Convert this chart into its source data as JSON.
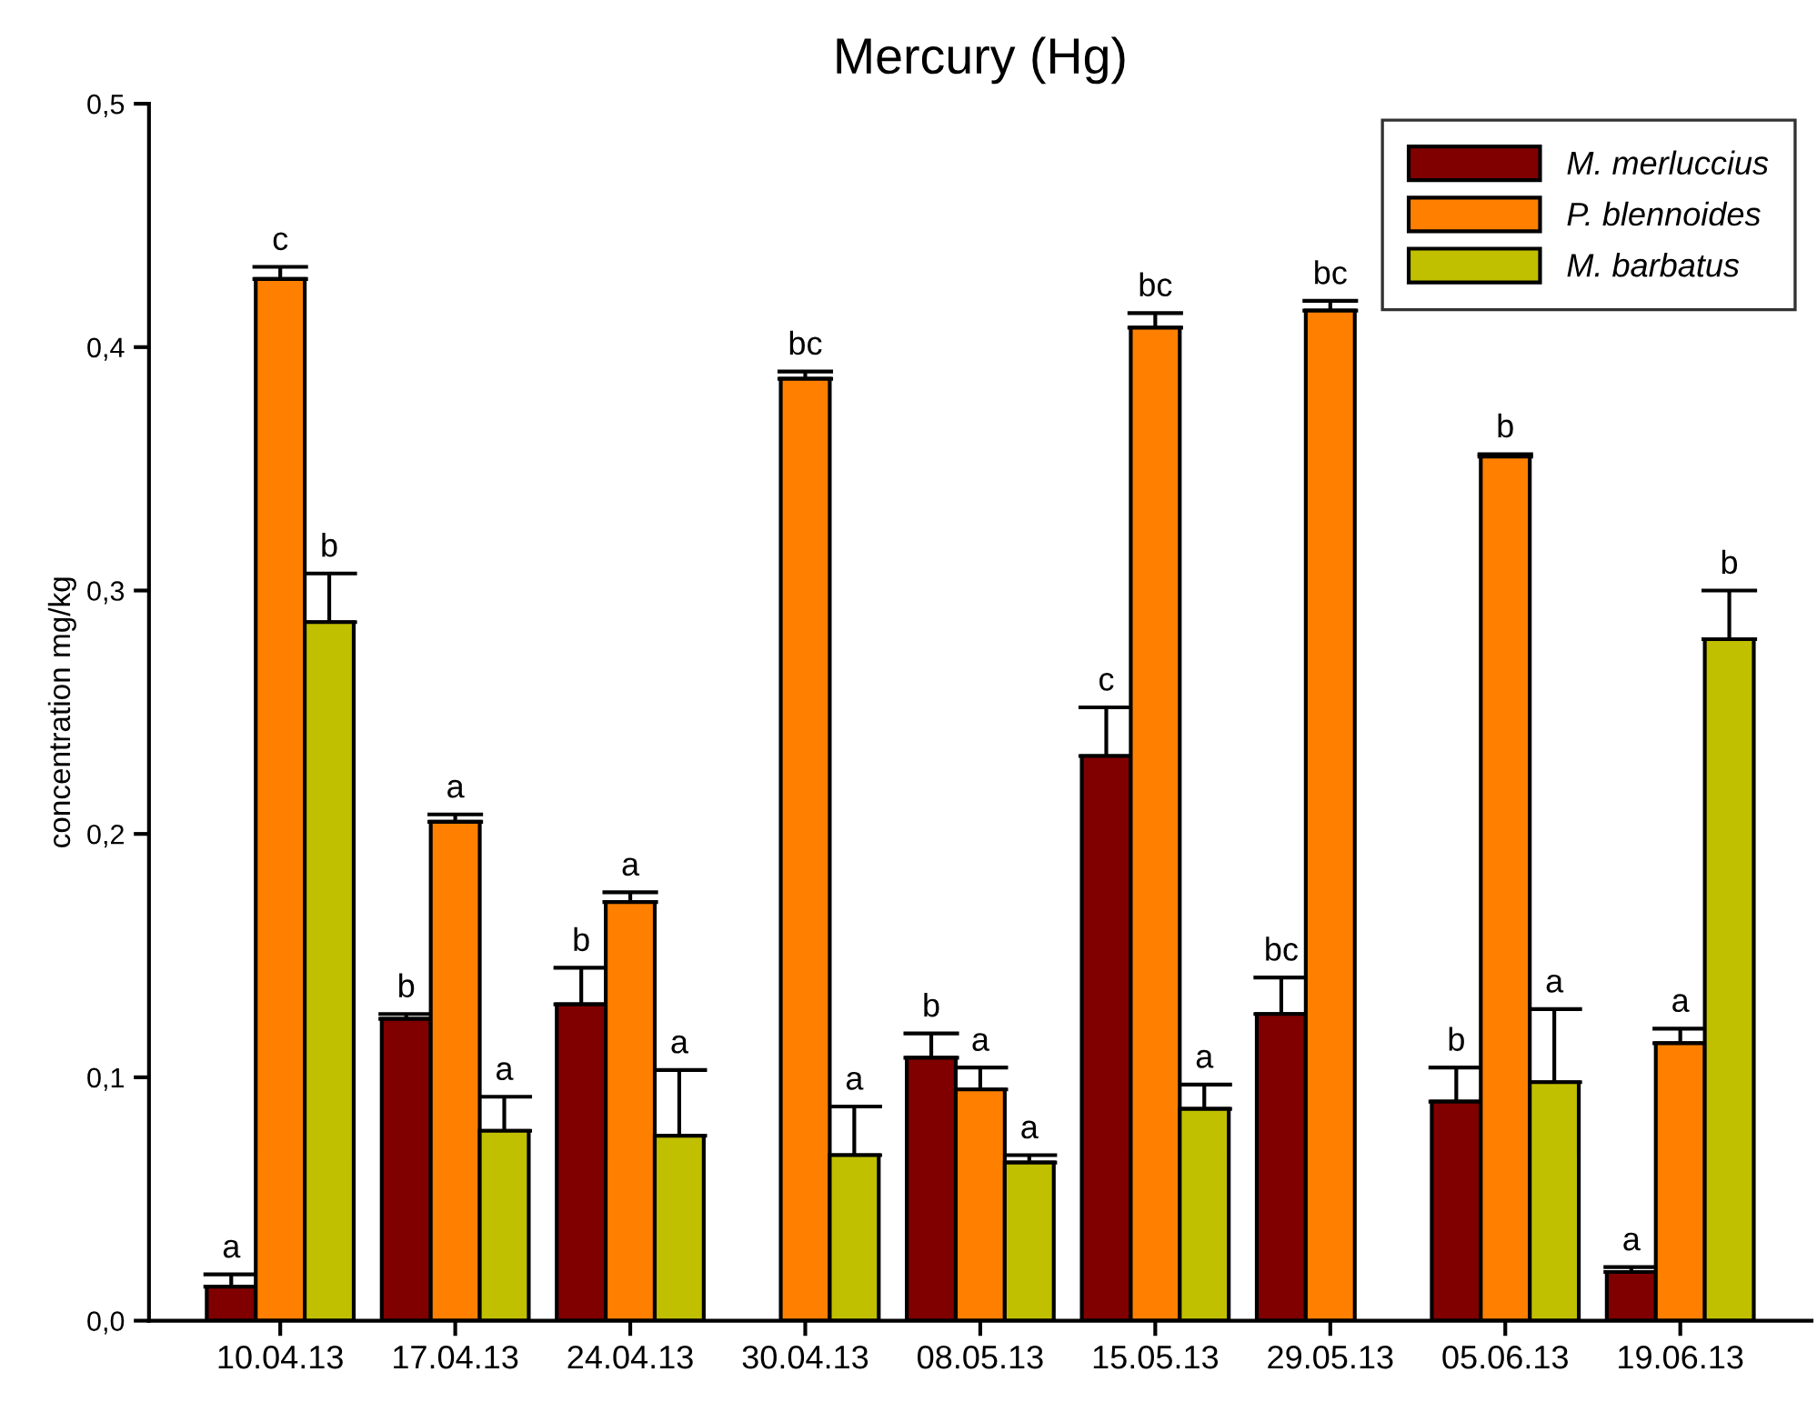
{
  "chart_data": {
    "type": "bar",
    "title": "Mercury (Hg)",
    "ylabel": "concentration mg/kg",
    "categories": [
      "10.04.13",
      "17.04.13",
      "24.04.13",
      "30.04.13",
      "08.05.13",
      "15.05.13",
      "29.05.13",
      "05.06.13",
      "19.06.13"
    ],
    "series": [
      {
        "name": "M. merluccius",
        "color": "#800000",
        "values": [
          0.014,
          0.124,
          0.13,
          null,
          0.108,
          0.232,
          0.126,
          0.09,
          0.02
        ],
        "errors": [
          [
            0.014,
            0.019
          ],
          [
            0.124,
            0.126
          ],
          [
            0.13,
            0.145
          ],
          null,
          [
            0.108,
            0.118
          ],
          [
            0.232,
            0.252
          ],
          [
            0.126,
            0.141
          ],
          [
            0.09,
            0.104
          ],
          [
            0.02,
            0.022
          ]
        ],
        "value_labels": [
          "a",
          "b",
          "b",
          null,
          "b",
          "c",
          "bc",
          "b",
          "a"
        ]
      },
      {
        "name": "P. blennoides",
        "color": "#ff8000",
        "values": [
          0.428,
          0.205,
          0.172,
          0.387,
          0.095,
          0.408,
          0.415,
          0.355,
          0.114
        ],
        "errors": [
          [
            0.428,
            0.433
          ],
          [
            0.205,
            0.208
          ],
          [
            0.172,
            0.176
          ],
          [
            0.387,
            0.39
          ],
          [
            0.095,
            0.104
          ],
          [
            0.408,
            0.414
          ],
          [
            0.415,
            0.419
          ],
          [
            0.355,
            0.356
          ],
          [
            0.114,
            0.12
          ]
        ],
        "value_labels": [
          "c",
          "a",
          "a",
          "bc",
          "a",
          "bc",
          "bc",
          "b",
          "a"
        ]
      },
      {
        "name": "M. barbatus",
        "color": "#c0c000",
        "values": [
          0.287,
          0.078,
          0.076,
          0.068,
          0.065,
          0.087,
          null,
          0.098,
          0.28
        ],
        "errors": [
          [
            0.287,
            0.307
          ],
          [
            0.078,
            0.092
          ],
          [
            0.076,
            0.103
          ],
          [
            0.068,
            0.088
          ],
          [
            0.065,
            0.068
          ],
          [
            0.087,
            0.097
          ],
          null,
          [
            0.098,
            0.128
          ],
          [
            0.28,
            0.3
          ]
        ],
        "value_labels": [
          "b",
          "a",
          "a",
          "a",
          "a",
          "a",
          null,
          "a",
          "b"
        ]
      }
    ],
    "ylim": [
      0,
      0.5
    ],
    "yticks": [
      {
        "value": 0,
        "label": "0,0"
      },
      {
        "value": 0.1,
        "label": "0,1"
      },
      {
        "value": 0.2,
        "label": "0,2"
      },
      {
        "value": 0.3,
        "label": "0,3"
      },
      {
        "value": 0.4,
        "label": "0,4"
      },
      {
        "value": 0.5,
        "label": "0,5"
      }
    ],
    "legend": "top right",
    "grid": false
  }
}
